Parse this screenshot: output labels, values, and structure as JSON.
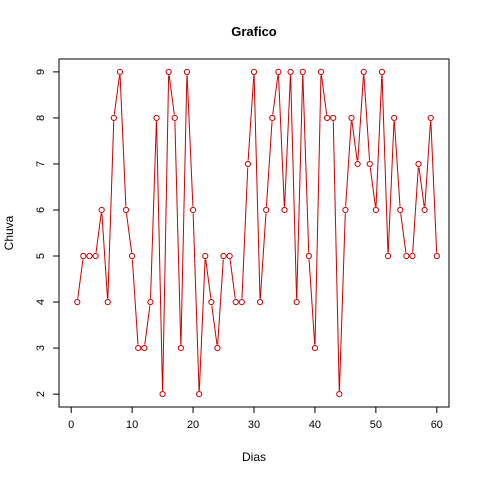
{
  "chart_data": {
    "type": "line",
    "title": "Grafico",
    "xlabel": "Dias",
    "ylabel": "Chuva",
    "xlim": [
      -2,
      62
    ],
    "ylim": [
      1.72,
      9.28
    ],
    "x_ticks": [
      0,
      10,
      20,
      30,
      40,
      50,
      60
    ],
    "y_ticks": [
      2,
      3,
      4,
      5,
      6,
      7,
      8,
      9
    ],
    "grid": false,
    "legend": "none",
    "line_color": "#cc0000",
    "marker": "open-circle",
    "series": [
      {
        "x": [
          1,
          2,
          3,
          4,
          5,
          6,
          7,
          8,
          9,
          10,
          11,
          12,
          13,
          14,
          15,
          16,
          17,
          18,
          19,
          20,
          21,
          22,
          23,
          24,
          25,
          26,
          27,
          28,
          29,
          30,
          31,
          32,
          33,
          34,
          35,
          36,
          37,
          38,
          39,
          40,
          41,
          42,
          43,
          44,
          45,
          46,
          47,
          48,
          49,
          50,
          51,
          52,
          53,
          54,
          55,
          56,
          57,
          58,
          59,
          60
        ],
        "values": [
          4,
          5,
          5,
          5,
          6,
          4,
          8,
          9,
          6,
          5,
          3,
          3,
          4,
          8,
          2,
          9,
          8,
          3,
          9,
          6,
          2,
          5,
          4,
          3,
          5,
          5,
          4,
          4,
          7,
          9,
          4,
          6,
          8,
          9,
          6,
          9,
          4,
          9,
          5,
          3,
          9,
          8,
          8,
          2,
          6,
          8,
          7,
          9,
          7,
          6,
          9,
          5,
          8,
          6,
          5,
          5,
          7,
          6,
          8,
          5
        ]
      }
    ]
  }
}
